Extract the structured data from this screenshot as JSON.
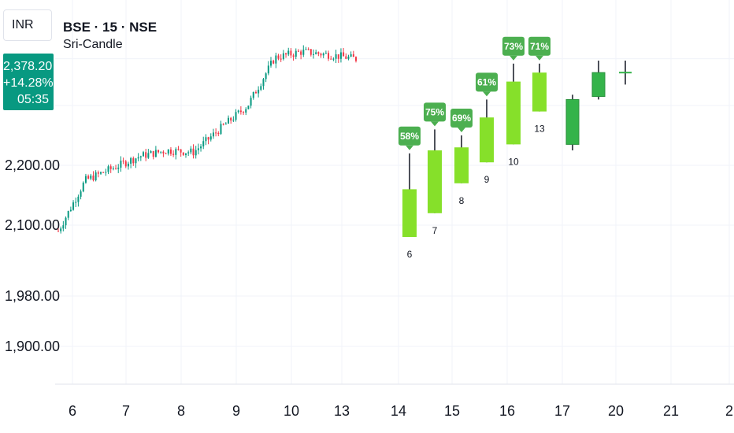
{
  "header": {
    "symbol_line": "BSE · 15 · NSE",
    "indicator_name": "Sri-Candle"
  },
  "price_scale": {
    "currency": "INR",
    "last_price": "2,378.20",
    "change_pct": "+14.28%",
    "countdown": "05:35"
  },
  "colors": {
    "up": "#089981",
    "down": "#f23645",
    "forecast_light": "#86e02a",
    "forecast_dark": "#34b34a",
    "badge": "#4caf50",
    "grid": "#f0f3fa"
  },
  "chart_data": {
    "type": "candlestick",
    "y_ticks": [
      {
        "label": "2,200.00",
        "value": 2200
      },
      {
        "label": "2,100.00",
        "value": 2100
      },
      {
        "label": "1,980.00",
        "value": 1980
      },
      {
        "label": "1,900.00",
        "value": 1900
      }
    ],
    "x_ticks": [
      "6",
      "7",
      "8",
      "9",
      "10",
      "13",
      "14",
      "15",
      "16",
      "17",
      "20",
      "21",
      "2"
    ],
    "historical_trend": [
      {
        "date": "6",
        "close": 2090
      },
      {
        "date": "6",
        "close": 2175
      },
      {
        "date": "7",
        "close": 2195
      },
      {
        "date": "7",
        "close": 2215
      },
      {
        "date": "8",
        "close": 2225
      },
      {
        "date": "8",
        "close": 2222
      },
      {
        "date": "9",
        "close": 2262
      },
      {
        "date": "9",
        "close": 2300
      },
      {
        "date": "10",
        "close": 2380
      },
      {
        "date": "10",
        "close": 2390
      },
      {
        "date": "13",
        "close": 2385
      },
      {
        "date": "13",
        "close": 2378
      }
    ],
    "forecast_candles": [
      {
        "label": "6",
        "pct": "58%",
        "open": 2080,
        "close": 2160,
        "high": 2220,
        "low": 2080,
        "color": "light"
      },
      {
        "label": "7",
        "pct": "75%",
        "open": 2120,
        "close": 2225,
        "high": 2260,
        "low": 2120,
        "color": "light"
      },
      {
        "label": "8",
        "pct": "69%",
        "open": 2170,
        "close": 2230,
        "high": 2250,
        "low": 2170,
        "color": "light"
      },
      {
        "label": "9",
        "pct": "61%",
        "open": 2205,
        "close": 2280,
        "high": 2310,
        "low": 2205,
        "color": "light"
      },
      {
        "label": "10",
        "pct": "73%",
        "open": 2235,
        "close": 2340,
        "high": 2370,
        "low": 2235,
        "color": "light"
      },
      {
        "label": "13",
        "pct": "71%",
        "open": 2290,
        "close": 2355,
        "high": 2370,
        "low": 2290,
        "color": "light"
      },
      {
        "label": "",
        "pct": "",
        "open": 2235,
        "close": 2310,
        "high": 2318,
        "low": 2225,
        "color": "dark"
      },
      {
        "label": "",
        "pct": "",
        "open": 2315,
        "close": 2355,
        "high": 2375,
        "low": 2310,
        "color": "dark"
      },
      {
        "label": "",
        "pct": "",
        "open": 2355,
        "close": 2355,
        "high": 2375,
        "low": 2335,
        "color": "dark"
      }
    ]
  }
}
